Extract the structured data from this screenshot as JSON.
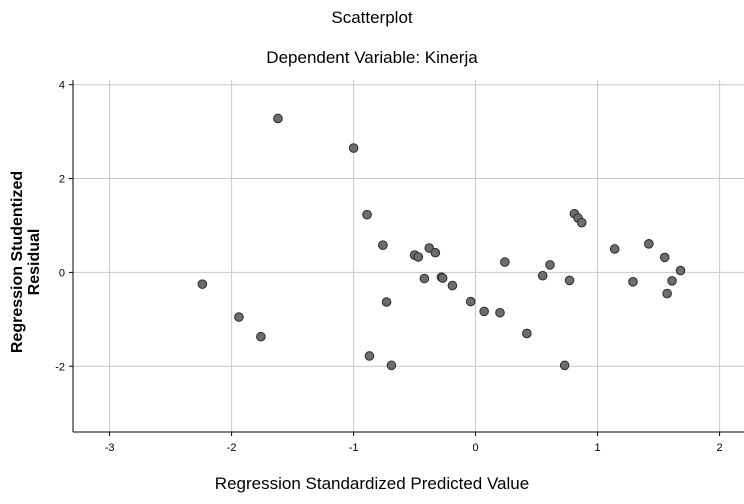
{
  "chart_data": {
    "type": "scatter",
    "title": "Scatterplot",
    "subtitle": "Dependent Variable: Kinerja",
    "xlabel": "Regression Standardized Predicted Value",
    "ylabel": [
      "Regression Studentized",
      "Residual"
    ],
    "xlim": [
      -3.3,
      2.2
    ],
    "ylim": [
      -3.4,
      4.1
    ],
    "xticks": [
      -3,
      -2,
      -1,
      0,
      1,
      2
    ],
    "yticks": [
      -2,
      0,
      2,
      4
    ],
    "grid": true,
    "marker_color": "#6d6d6d",
    "points": [
      {
        "x": -2.24,
        "y": -0.25
      },
      {
        "x": -1.94,
        "y": -0.95
      },
      {
        "x": -1.76,
        "y": -1.37
      },
      {
        "x": -1.62,
        "y": 3.28
      },
      {
        "x": -1.0,
        "y": 2.65
      },
      {
        "x": -0.89,
        "y": 1.23
      },
      {
        "x": -0.87,
        "y": -1.78
      },
      {
        "x": -0.76,
        "y": 0.58
      },
      {
        "x": -0.73,
        "y": -0.63
      },
      {
        "x": -0.69,
        "y": -1.98
      },
      {
        "x": -0.5,
        "y": 0.37
      },
      {
        "x": -0.47,
        "y": 0.33
      },
      {
        "x": -0.42,
        "y": -0.13
      },
      {
        "x": -0.38,
        "y": 0.52
      },
      {
        "x": -0.33,
        "y": 0.42
      },
      {
        "x": -0.28,
        "y": -0.1
      },
      {
        "x": -0.27,
        "y": -0.12
      },
      {
        "x": -0.19,
        "y": -0.28
      },
      {
        "x": -0.04,
        "y": -0.62
      },
      {
        "x": 0.07,
        "y": -0.83
      },
      {
        "x": 0.2,
        "y": -0.86
      },
      {
        "x": 0.24,
        "y": 0.22
      },
      {
        "x": 0.42,
        "y": -1.3
      },
      {
        "x": 0.55,
        "y": -0.07
      },
      {
        "x": 0.61,
        "y": 0.16
      },
      {
        "x": 0.73,
        "y": -1.98
      },
      {
        "x": 0.77,
        "y": -0.17
      },
      {
        "x": 0.81,
        "y": 1.25
      },
      {
        "x": 0.84,
        "y": 1.16
      },
      {
        "x": 0.87,
        "y": 1.06
      },
      {
        "x": 1.14,
        "y": 0.5
      },
      {
        "x": 1.29,
        "y": -0.2
      },
      {
        "x": 1.42,
        "y": 0.61
      },
      {
        "x": 1.55,
        "y": 0.32
      },
      {
        "x": 1.57,
        "y": -0.45
      },
      {
        "x": 1.61,
        "y": -0.18
      },
      {
        "x": 1.68,
        "y": 0.04
      }
    ]
  }
}
